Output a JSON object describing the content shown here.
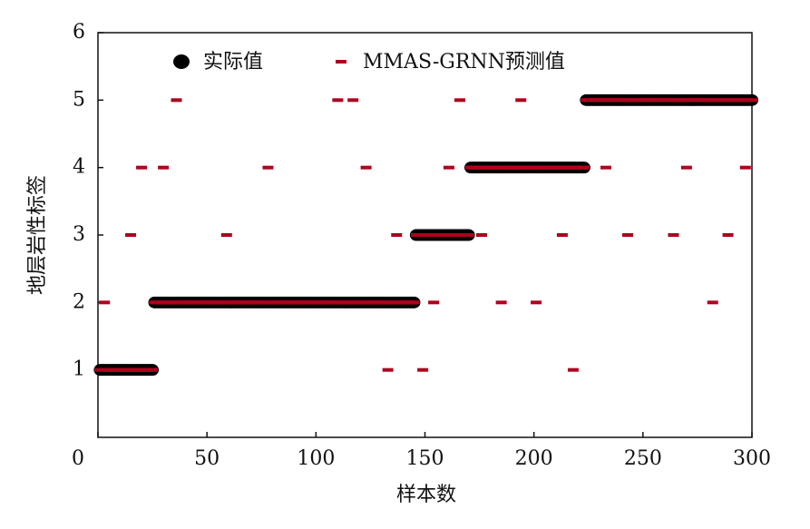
{
  "chart_data": {
    "type": "scatter",
    "x_label": "样本数",
    "y_label": "地层岩性标签",
    "xlim": [
      0,
      300
    ],
    "xticks": [
      0,
      50,
      100,
      150,
      200,
      250,
      300
    ],
    "ylim": [
      0,
      6
    ],
    "yticks": [
      1,
      2,
      3,
      4,
      5,
      6
    ],
    "legend_position": "top",
    "x": [
      1,
      2,
      3,
      4,
      5,
      6,
      7,
      8,
      9,
      10,
      11,
      12,
      13,
      14,
      15,
      16,
      17,
      18,
      19,
      20,
      21,
      22,
      23,
      24,
      25,
      26,
      27,
      28,
      29,
      30,
      31,
      32,
      33,
      34,
      35,
      36,
      37,
      38,
      39,
      40,
      41,
      42,
      43,
      44,
      45,
      46,
      47,
      48,
      49,
      50,
      51,
      52,
      53,
      54,
      55,
      56,
      57,
      58,
      59,
      60,
      61,
      62,
      63,
      64,
      65,
      66,
      67,
      68,
      69,
      70,
      71,
      72,
      73,
      74,
      75,
      76,
      77,
      78,
      79,
      80,
      81,
      82,
      83,
      84,
      85,
      86,
      87,
      88,
      89,
      90,
      91,
      92,
      93,
      94,
      95,
      96,
      97,
      98,
      99,
      100,
      101,
      102,
      103,
      104,
      105,
      106,
      107,
      108,
      109,
      110,
      111,
      112,
      113,
      114,
      115,
      116,
      117,
      118,
      119,
      120,
      121,
      122,
      123,
      124,
      125,
      126,
      127,
      128,
      129,
      130,
      131,
      132,
      133,
      134,
      135,
      136,
      137,
      138,
      139,
      140,
      141,
      142,
      143,
      144,
      145,
      146,
      147,
      148,
      149,
      150,
      151,
      152,
      153,
      154,
      155,
      156,
      157,
      158,
      159,
      160,
      161,
      162,
      163,
      164,
      165,
      166,
      167,
      168,
      169,
      170,
      171,
      172,
      173,
      174,
      175,
      176,
      177,
      178,
      179,
      180,
      181,
      182,
      183,
      184,
      185,
      186,
      187,
      188,
      189,
      190,
      191,
      192,
      193,
      194,
      195,
      196,
      197,
      198,
      199,
      200,
      201,
      202,
      203,
      204,
      205,
      206,
      207,
      208,
      209,
      210,
      211,
      212,
      213,
      214,
      215,
      216,
      217,
      218,
      219,
      220,
      221,
      222,
      223,
      224,
      225,
      226,
      227,
      228,
      229,
      230,
      231,
      232,
      233,
      234,
      235,
      236,
      237,
      238,
      239,
      240,
      241,
      242,
      243,
      244,
      245,
      246,
      247,
      248,
      249,
      250,
      251,
      252,
      253,
      254,
      255,
      256,
      257,
      258,
      259,
      260,
      261,
      262,
      263,
      264,
      265,
      266,
      267,
      268,
      269,
      270,
      271,
      272,
      273,
      274,
      275,
      276,
      277,
      278,
      279,
      280,
      281,
      282,
      283,
      284,
      285,
      286,
      287,
      288,
      289,
      290,
      291,
      292,
      293,
      294,
      295,
      296,
      297,
      298,
      299,
      300
    ],
    "series": [
      {
        "name": "实际值",
        "color": "#000000",
        "marker": "circle",
        "values": [
          1,
          1,
          1,
          1,
          1,
          1,
          1,
          1,
          1,
          1,
          1,
          1,
          1,
          1,
          1,
          1,
          1,
          1,
          1,
          1,
          1,
          1,
          1,
          1,
          1,
          2,
          2,
          2,
          2,
          2,
          2,
          2,
          2,
          2,
          2,
          2,
          2,
          2,
          2,
          2,
          2,
          2,
          2,
          2,
          2,
          2,
          2,
          2,
          2,
          2,
          2,
          2,
          2,
          2,
          2,
          2,
          2,
          2,
          2,
          2,
          2,
          2,
          2,
          2,
          2,
          2,
          2,
          2,
          2,
          2,
          2,
          2,
          2,
          2,
          2,
          2,
          2,
          2,
          2,
          2,
          2,
          2,
          2,
          2,
          2,
          2,
          2,
          2,
          2,
          2,
          2,
          2,
          2,
          2,
          2,
          2,
          2,
          2,
          2,
          2,
          2,
          2,
          2,
          2,
          2,
          2,
          2,
          2,
          2,
          2,
          2,
          2,
          2,
          2,
          2,
          2,
          2,
          2,
          2,
          2,
          2,
          2,
          2,
          2,
          2,
          2,
          2,
          2,
          2,
          2,
          2,
          2,
          2,
          2,
          2,
          2,
          2,
          2,
          2,
          2,
          2,
          2,
          2,
          2,
          2,
          3,
          3,
          3,
          3,
          3,
          3,
          3,
          3,
          3,
          3,
          3,
          3,
          3,
          3,
          3,
          3,
          3,
          3,
          3,
          3,
          3,
          3,
          3,
          3,
          3,
          4,
          4,
          4,
          4,
          4,
          4,
          4,
          4,
          4,
          4,
          4,
          4,
          4,
          4,
          4,
          4,
          4,
          4,
          4,
          4,
          4,
          4,
          4,
          4,
          4,
          4,
          4,
          4,
          4,
          4,
          4,
          4,
          4,
          4,
          4,
          4,
          4,
          4,
          4,
          4,
          4,
          4,
          4,
          4,
          4,
          4,
          4,
          4,
          4,
          4,
          4,
          4,
          4,
          5,
          5,
          5,
          5,
          5,
          5,
          5,
          5,
          5,
          5,
          5,
          5,
          5,
          5,
          5,
          5,
          5,
          5,
          5,
          5,
          5,
          5,
          5,
          5,
          5,
          5,
          5,
          5,
          5,
          5,
          5,
          5,
          5,
          5,
          5,
          5,
          5,
          5,
          5,
          5,
          5,
          5,
          5,
          5,
          5,
          5,
          5,
          5,
          5,
          5,
          5,
          5,
          5,
          5,
          5,
          5,
          5,
          5,
          5,
          5,
          5,
          5,
          5,
          5,
          5,
          5,
          5,
          5,
          5,
          5,
          5,
          5,
          5,
          5,
          5,
          5,
          5
        ]
      },
      {
        "name": "MMAS-GRNN预测值",
        "color": "#b0001e",
        "marker": "dash",
        "values": [
          1,
          1,
          2,
          1,
          1,
          1,
          1,
          1,
          1,
          1,
          1,
          1,
          1,
          1,
          3,
          1,
          1,
          1,
          1,
          4,
          1,
          1,
          1,
          1,
          1,
          2,
          2,
          2,
          2,
          4,
          2,
          2,
          2,
          2,
          2,
          5,
          2,
          2,
          2,
          2,
          2,
          2,
          2,
          2,
          2,
          2,
          2,
          2,
          2,
          2,
          2,
          2,
          2,
          2,
          2,
          2,
          2,
          2,
          3,
          2,
          2,
          2,
          2,
          2,
          2,
          2,
          2,
          2,
          2,
          2,
          2,
          2,
          2,
          2,
          2,
          2,
          2,
          4,
          2,
          2,
          2,
          2,
          2,
          2,
          2,
          2,
          2,
          2,
          2,
          2,
          2,
          2,
          2,
          2,
          2,
          2,
          2,
          2,
          2,
          2,
          2,
          2,
          2,
          2,
          2,
          2,
          2,
          2,
          2,
          5,
          2,
          2,
          2,
          2,
          2,
          2,
          5,
          2,
          2,
          2,
          2,
          2,
          4,
          2,
          2,
          2,
          2,
          2,
          2,
          2,
          2,
          2,
          1,
          2,
          2,
          2,
          3,
          2,
          2,
          2,
          2,
          2,
          2,
          2,
          2,
          3,
          3,
          3,
          1,
          3,
          3,
          3,
          3,
          2,
          3,
          3,
          3,
          3,
          3,
          3,
          4,
          3,
          3,
          3,
          3,
          5,
          3,
          3,
          3,
          3,
          4,
          4,
          4,
          4,
          4,
          3,
          4,
          4,
          4,
          4,
          4,
          4,
          4,
          4,
          2,
          4,
          4,
          4,
          4,
          4,
          4,
          4,
          4,
          5,
          4,
          4,
          4,
          4,
          4,
          4,
          2,
          4,
          4,
          4,
          4,
          4,
          4,
          4,
          4,
          4,
          4,
          4,
          3,
          4,
          4,
          4,
          4,
          1,
          4,
          4,
          4,
          4,
          4,
          5,
          5,
          5,
          5,
          5,
          5,
          5,
          5,
          5,
          4,
          5,
          5,
          5,
          5,
          5,
          5,
          5,
          5,
          5,
          3,
          5,
          5,
          5,
          5,
          5,
          5,
          5,
          5,
          5,
          5,
          5,
          5,
          5,
          5,
          5,
          5,
          5,
          5,
          5,
          5,
          3,
          5,
          5,
          5,
          5,
          5,
          4,
          5,
          5,
          5,
          5,
          5,
          5,
          5,
          5,
          5,
          5,
          5,
          2,
          5,
          5,
          5,
          5,
          5,
          5,
          3,
          5,
          5,
          5,
          5,
          5,
          5,
          5,
          4,
          5,
          5,
          5
        ]
      }
    ]
  }
}
